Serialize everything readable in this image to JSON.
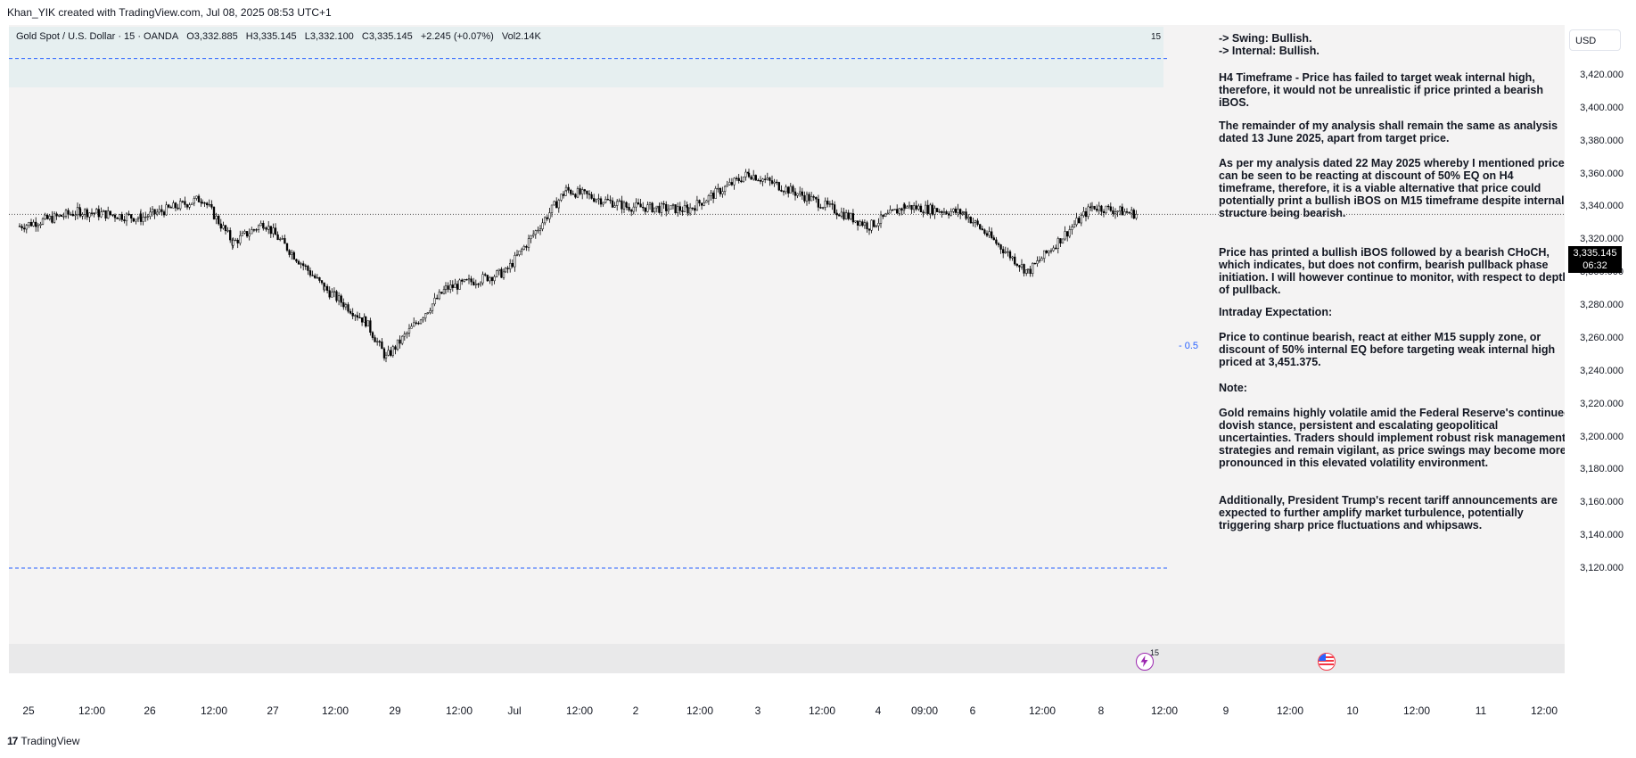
{
  "header": {
    "attribution": "Khan_YIK created with TradingView.com, Jul 08, 2025 08:53 UTC+1"
  },
  "legend": {
    "symbol": "Gold Spot / U.S. Dollar · 15 · OANDA",
    "open": "O3,332.885",
    "high": "H3,335.145",
    "low": "L3,332.100",
    "close": "C3,335.145",
    "change": "+2.245 (+0.07%)",
    "volume": "Vol2.14K",
    "interval_badge": "15"
  },
  "price_axis": {
    "currency": "USD",
    "ticks": [
      "3,420.000",
      "3,400.000",
      "3,380.000",
      "3,360.000",
      "3,340.000",
      "3,320.000",
      "3,300.000",
      "3,280.000",
      "3,260.000",
      "3,240.000",
      "3,220.000",
      "3,200.000",
      "3,180.000",
      "3,160.000",
      "3,140.000",
      "3,120.000"
    ],
    "current_price": "3,335.145",
    "countdown": "06:32"
  },
  "time_axis": {
    "labels": [
      "25",
      "12:00",
      "26",
      "12:00",
      "27",
      "12:00",
      "29",
      "12:00",
      "Jul",
      "12:00",
      "2",
      "12:00",
      "3",
      "12:00",
      "4",
      "09:00",
      "6",
      "12:00",
      "8",
      "12:00",
      "9",
      "12:00",
      "10",
      "12:00",
      "11",
      "12:00"
    ]
  },
  "chart_data": {
    "type": "candlestick",
    "symbol": "XAUUSD",
    "interval": "15",
    "y_range": [
      3110,
      3430
    ],
    "x_range": [
      "Jun 25",
      "Jul 11"
    ],
    "price_path": [
      {
        "t": "Jun 25 00:00",
        "price": 3328
      },
      {
        "t": "Jun 25 12:00",
        "price": 3337
      },
      {
        "t": "Jun 26 00:00",
        "price": 3333
      },
      {
        "t": "Jun 26 12:00",
        "price": 3345
      },
      {
        "t": "Jun 26 18:00",
        "price": 3318
      },
      {
        "t": "Jun 27 00:00",
        "price": 3330
      },
      {
        "t": "Jun 27 12:00",
        "price": 3290
      },
      {
        "t": "Jun 27 20:00",
        "price": 3270
      },
      {
        "t": "Jun 29 00:00",
        "price": 3248
      },
      {
        "t": "Jun 29 12:00",
        "price": 3290
      },
      {
        "t": "Jul 1 00:00",
        "price": 3300
      },
      {
        "t": "Jul 1 12:00",
        "price": 3350
      },
      {
        "t": "Jul 2 00:00",
        "price": 3340
      },
      {
        "t": "Jul 2 12:00",
        "price": 3338
      },
      {
        "t": "Jul 3 00:00",
        "price": 3360
      },
      {
        "t": "Jul 3 12:00",
        "price": 3345
      },
      {
        "t": "Jul 4 00:00",
        "price": 3328
      },
      {
        "t": "Jul 4 09:00",
        "price": 3340
      },
      {
        "t": "Jul 6 00:00",
        "price": 3336
      },
      {
        "t": "Jul 6 12:00",
        "price": 3300
      },
      {
        "t": "Jul 8 00:00",
        "price": 3340
      },
      {
        "t": "Jul 8 08:53",
        "price": 3335.145
      }
    ],
    "horizontal_lines": [
      {
        "price": 3335.145,
        "style": "dotted"
      },
      {
        "price": 3430,
        "style": "dashed",
        "color": "#2962ff"
      },
      {
        "price": 3120,
        "style": "dashed",
        "color": "#2962ff"
      }
    ],
    "level_labels": [
      {
        "text": "- 0.5",
        "price": 3282,
        "color": "#2962ff"
      }
    ]
  },
  "annotation": {
    "eq_label": "- 0.5",
    "paragraphs": [
      "-> Swing: Bullish.\n-> Internal: Bullish.",
      "H4 Timeframe - Price has failed to target weak internal high, therefore, it would not be unrealistic if price printed a bearish iBOS.",
      "The remainder of my analysis shall remain the same as analysis dated  13 June 2025, apart from target price.",
      "As per my analysis dated 22 May 2025 whereby I mentioned price can be seen to be reacting at discount of 50% EQ on H4 timeframe, therefore, it is a viable alternative that price could potentially print a bullish iBOS on M15 timeframe despite internal structure being bearish.",
      "Price has printed a bullish iBOS followed by a bearish CHoCH, which indicates, but does not confirm, bearish pullback phase initiation.  I will however continue to monitor, with respect to depth of pullback.",
      "Intraday Expectation:",
      "Price to continue bearish, react at either M15 supply zone, or discount of 50% internal EQ before targeting weak internal high priced at 3,451.375.",
      "Note:",
      "Gold remains highly volatile amid the Federal Reserve's continued dovish stance, persistent and escalating geopolitical uncertainties. Traders should implement robust risk management strategies and remain vigilant, as price swings may become more pronounced in this elevated volatility environment.",
      "Additionally, President Trump's recent tariff announcements are expected to further amplify market turbulence, potentially triggering sharp price fluctuations and whipsaws."
    ]
  },
  "events": {
    "bolt_badge": "15"
  },
  "footer": {
    "brand": "TradingView",
    "logo_text": "17"
  },
  "colors": {
    "accent": "#2962ff",
    "candle": "#000000",
    "background": "#f4f3f3",
    "event_purple": "#9c27b0",
    "event_red": "#f23645"
  }
}
